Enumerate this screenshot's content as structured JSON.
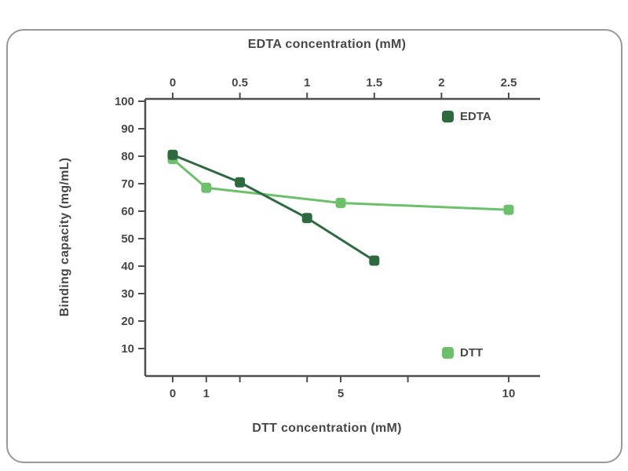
{
  "chart_data": {
    "type": "line",
    "y_axis": {
      "label": "Binding capacity (mg/mL)",
      "range": [
        0,
        100
      ],
      "ticks": [
        10,
        20,
        30,
        40,
        50,
        60,
        70,
        80,
        90,
        100
      ]
    },
    "top_axis": {
      "label": "EDTA concentration (mM)",
      "range": [
        0,
        2.5
      ],
      "ticks": [
        {
          "v": 0,
          "label": "0"
        },
        {
          "v": 0.5,
          "label": "0.5"
        },
        {
          "v": 1,
          "label": "1"
        },
        {
          "v": 1.5,
          "label": "1.5"
        },
        {
          "v": 2,
          "label": "2"
        },
        {
          "v": 2.5,
          "label": "2.5"
        }
      ]
    },
    "bottom_axis": {
      "label": "DTT concentration (mM)",
      "range": [
        0,
        10
      ],
      "ticks": [
        {
          "v": 0,
          "label": "0"
        },
        {
          "v": 1,
          "label": "1"
        },
        {
          "v": 2,
          "label": ""
        },
        {
          "v": 4,
          "label": ""
        },
        {
          "v": 5,
          "label": "5"
        },
        {
          "v": 7,
          "label": ""
        },
        {
          "v": 10,
          "label": "10"
        }
      ]
    },
    "series": [
      {
        "name": "DTT",
        "axis": "bottom",
        "color": "#6cc069",
        "points": [
          {
            "x": 0,
            "y": 79
          },
          {
            "x": 1,
            "y": 68.5
          },
          {
            "x": 5,
            "y": 63
          },
          {
            "x": 10,
            "y": 60.5
          }
        ]
      },
      {
        "name": "EDTA",
        "axis": "top",
        "color": "#2d6a3f",
        "points": [
          {
            "x": 0,
            "y": 80.5
          },
          {
            "x": 0.5,
            "y": 70.5
          },
          {
            "x": 1,
            "y": 57.5
          },
          {
            "x": 1.5,
            "y": 42
          }
        ]
      }
    ],
    "legend": [
      {
        "name": "EDTA",
        "color": "#2d6a3f"
      },
      {
        "name": "DTT",
        "color": "#6cc069"
      }
    ]
  },
  "colors": {
    "axis": "#4f4f4f",
    "text": "#474747",
    "card_border": "#989898",
    "background": "#ffffff"
  }
}
